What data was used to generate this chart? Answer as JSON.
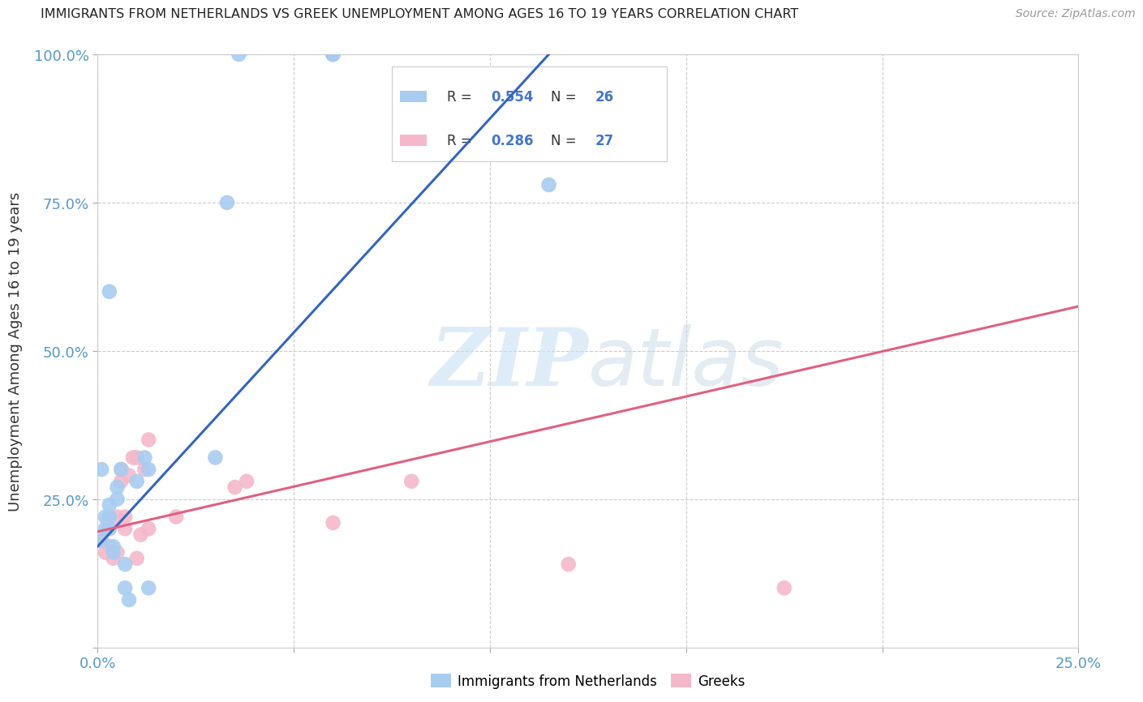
{
  "title": "IMMIGRANTS FROM NETHERLANDS VS GREEK UNEMPLOYMENT AMONG AGES 16 TO 19 YEARS CORRELATION CHART",
  "source": "Source: ZipAtlas.com",
  "ylabel": "Unemployment Among Ages 16 to 19 years",
  "xlim": [
    0,
    0.25
  ],
  "ylim": [
    0,
    1.0
  ],
  "xticks": [
    0.0,
    0.05,
    0.1,
    0.15,
    0.2,
    0.25
  ],
  "yticks": [
    0.0,
    0.25,
    0.5,
    0.75,
    1.0
  ],
  "blue_scatter_x": [
    0.001,
    0.001,
    0.002,
    0.002,
    0.003,
    0.003,
    0.003,
    0.004,
    0.004,
    0.005,
    0.005,
    0.006,
    0.007,
    0.007,
    0.008,
    0.01,
    0.012,
    0.013,
    0.013,
    0.03,
    0.033,
    0.036,
    0.06,
    0.06,
    0.115,
    0.003
  ],
  "blue_scatter_y": [
    0.18,
    0.3,
    0.2,
    0.22,
    0.22,
    0.24,
    0.2,
    0.17,
    0.16,
    0.25,
    0.27,
    0.3,
    0.14,
    0.1,
    0.08,
    0.28,
    0.32,
    0.3,
    0.1,
    0.32,
    0.75,
    1.0,
    1.0,
    1.0,
    0.78,
    0.6
  ],
  "pink_scatter_x": [
    0.001,
    0.002,
    0.003,
    0.003,
    0.004,
    0.005,
    0.005,
    0.006,
    0.006,
    0.007,
    0.007,
    0.008,
    0.009,
    0.01,
    0.01,
    0.011,
    0.012,
    0.013,
    0.013,
    0.02,
    0.035,
    0.038,
    0.06,
    0.08,
    0.12,
    0.175,
    0.06
  ],
  "pink_scatter_y": [
    0.18,
    0.16,
    0.17,
    0.2,
    0.15,
    0.22,
    0.16,
    0.28,
    0.3,
    0.2,
    0.22,
    0.29,
    0.32,
    0.32,
    0.15,
    0.19,
    0.3,
    0.35,
    0.2,
    0.22,
    0.27,
    0.28,
    0.21,
    0.28,
    0.14,
    0.1,
    1.0
  ],
  "blue_line_x": [
    0.0,
    0.115
  ],
  "blue_line_y": [
    0.17,
    1.0
  ],
  "pink_line_x": [
    0.0,
    0.25
  ],
  "pink_line_y": [
    0.195,
    0.575
  ],
  "blue_color": "#a8ccf0",
  "pink_color": "#f5b8cb",
  "blue_line_color": "#3366bb",
  "pink_line_color": "#e06080",
  "legend_label_blue": "Immigrants from Netherlands",
  "legend_label_pink": "Greeks",
  "watermark_zip": "ZIP",
  "watermark_atlas": "atlas",
  "background_color": "#ffffff",
  "grid_color": "#cccccc"
}
